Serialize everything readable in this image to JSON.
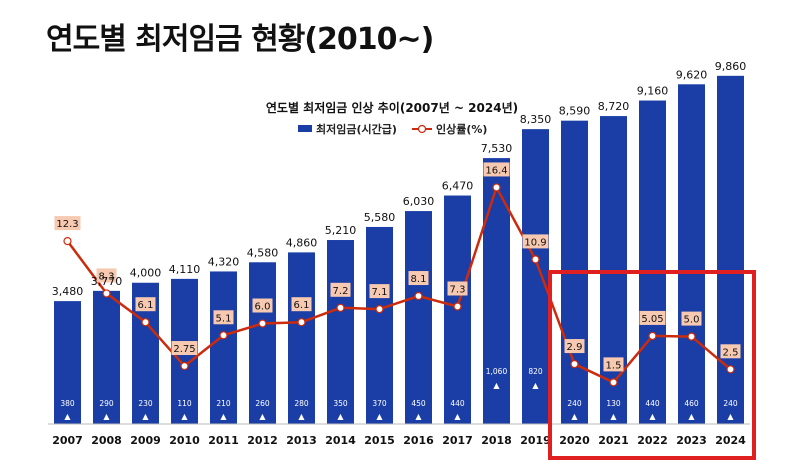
{
  "page": {
    "title": "연도별 최저임금 현황(2010~)"
  },
  "colors": {
    "bar": "#1a3ea6",
    "line": "#cc2b0c",
    "label_bg": "#f7c9b0",
    "highlight": "#e02020"
  },
  "chart_data": {
    "type": "bar",
    "title": "연도별 최저임금 인상 추이(2007년 ~ 2024년)",
    "legend": {
      "bar_label": "최저임금(시간급)",
      "line_label": "인상률(%)",
      "placement": "top-center"
    },
    "categories": [
      "2007",
      "2008",
      "2009",
      "2010",
      "2011",
      "2012",
      "2013",
      "2014",
      "2015",
      "2016",
      "2017",
      "2018",
      "2019",
      "2020",
      "2021",
      "2022",
      "2023",
      "2024"
    ],
    "series": [
      {
        "name": "최저임금(시간급)",
        "type": "bar",
        "values": [
          3480,
          3770,
          4000,
          4110,
          4320,
          4580,
          4860,
          5210,
          5580,
          6030,
          6470,
          7530,
          8350,
          8590,
          8720,
          9160,
          9620,
          9860
        ],
        "labels": [
          "3,480",
          "3,770",
          "4,000",
          "4,110",
          "4,320",
          "4,580",
          "4,860",
          "5,210",
          "5,580",
          "6,030",
          "6,470",
          "7,530",
          "8,350",
          "8,590",
          "8,720",
          "9,160",
          "9,620",
          "9,860"
        ]
      },
      {
        "name": "인상률(%)",
        "type": "line",
        "values": [
          12.3,
          8.3,
          6.1,
          2.75,
          5.1,
          6.0,
          6.1,
          7.2,
          7.1,
          8.1,
          7.3,
          16.4,
          10.9,
          2.9,
          1.5,
          5.05,
          5.0,
          2.5
        ],
        "labels": [
          "12.3",
          "8.3",
          "6.1",
          "2.75",
          "5.1",
          "6.0",
          "6.1",
          "7.2",
          "7.1",
          "8.1",
          "7.3",
          "16.4",
          "10.9",
          "2.9",
          "1.5",
          "5.05",
          "5.0",
          "2.5"
        ]
      }
    ],
    "increase_amounts": [
      null,
      null,
      null,
      null,
      null,
      null,
      null,
      null,
      null,
      null,
      null,
      null,
      null,
      null,
      null,
      null,
      null,
      null
    ],
    "increases": [
      "380",
      "290",
      "230",
      "110",
      "210",
      "260",
      "280",
      "350",
      "370",
      "450",
      "440",
      "1,060",
      "820",
      "240",
      "130",
      "440",
      "460",
      "240"
    ],
    "increase_marker": "▲",
    "highlight": {
      "from": "2020",
      "to": "2024"
    },
    "ylim": [
      0,
      11000
    ],
    "rate_ylim": [
      0,
      18
    ]
  }
}
